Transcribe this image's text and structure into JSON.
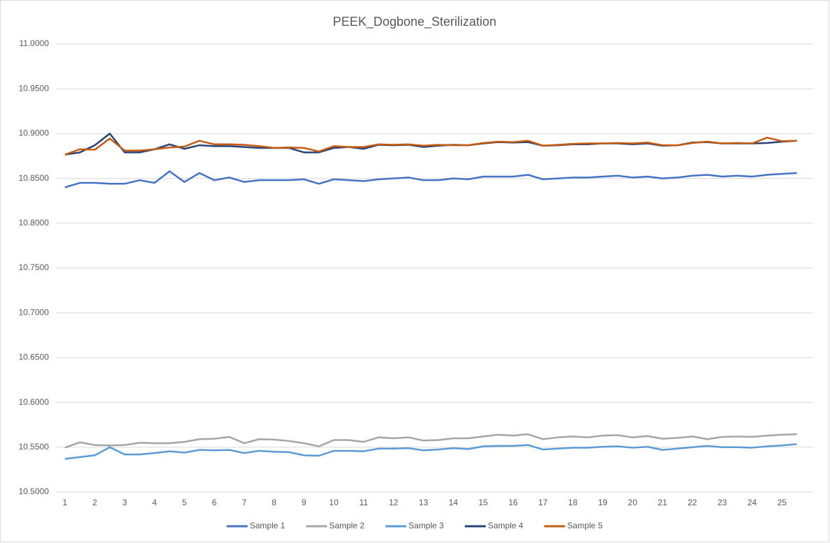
{
  "chart_data": {
    "type": "line",
    "title": "PEEK_Dogbone_Sterilization",
    "categories": [
      "1",
      null,
      "2",
      null,
      "3",
      null,
      "4",
      null,
      "5",
      null,
      "6",
      null,
      "7",
      null,
      "8",
      null,
      "9",
      null,
      "10",
      null,
      "11",
      null,
      "12",
      null,
      "13",
      null,
      "14",
      null,
      "15",
      null,
      "16",
      null,
      "17",
      null,
      "18",
      null,
      "19",
      null,
      "20",
      null,
      "21",
      null,
      "22",
      null,
      "23",
      null,
      "24",
      null,
      "25",
      null
    ],
    "ylim": [
      10.5,
      11.0
    ],
    "yticks": [
      {
        "value": 10.5,
        "label": "10.5000"
      },
      {
        "value": 10.55,
        "label": "10.5500"
      },
      {
        "value": 10.6,
        "label": "10.6000"
      },
      {
        "value": 10.65,
        "label": "10.6500"
      },
      {
        "value": 10.7,
        "label": "10.7000"
      },
      {
        "value": 10.75,
        "label": "10.7500"
      },
      {
        "value": 10.8,
        "label": "10.8000"
      },
      {
        "value": 10.85,
        "label": "10.8500"
      },
      {
        "value": 10.9,
        "label": "10.9000"
      },
      {
        "value": 10.95,
        "label": "10.9500"
      },
      {
        "value": 11.0,
        "label": "11.0000"
      }
    ],
    "grid": true,
    "legend": "bottom",
    "series": [
      {
        "name": "Sample 1",
        "color": "#4472c4",
        "values": [
          10.84,
          10.845,
          10.845,
          10.844,
          10.844,
          10.848,
          10.845,
          10.858,
          10.846,
          10.856,
          10.848,
          10.851,
          10.846,
          10.848,
          10.848,
          10.848,
          10.849,
          10.844,
          10.849,
          10.848,
          10.847,
          10.849,
          10.85,
          10.851,
          10.848,
          10.848,
          10.85,
          10.849,
          10.852,
          10.852,
          10.852,
          10.854,
          10.849,
          10.85,
          10.851,
          10.851,
          10.852,
          10.853,
          10.851,
          10.852,
          10.85,
          10.851,
          10.853,
          10.854,
          10.852,
          10.853,
          10.852,
          10.854,
          10.855,
          10.856
        ]
      },
      {
        "name": "Sample 2",
        "color": "#a5a5a5",
        "values": [
          10.5495,
          10.5555,
          10.5525,
          10.552,
          10.5525,
          10.555,
          10.5545,
          10.5545,
          10.556,
          10.559,
          10.5595,
          10.5615,
          10.5545,
          10.559,
          10.5585,
          10.557,
          10.5545,
          10.551,
          10.558,
          10.558,
          10.556,
          10.561,
          10.56,
          10.561,
          10.5575,
          10.558,
          10.56,
          10.56,
          10.562,
          10.564,
          10.563,
          10.5645,
          10.559,
          10.561,
          10.562,
          10.561,
          10.563,
          10.5635,
          10.561,
          10.5625,
          10.5595,
          10.5605,
          10.562,
          10.559,
          10.5615,
          10.562,
          10.5615,
          10.563,
          10.564,
          10.5645
        ]
      },
      {
        "name": "Sample 3",
        "color": "#5b9bd5",
        "values": [
          10.537,
          10.539,
          10.541,
          10.55,
          10.542,
          10.542,
          10.5435,
          10.5455,
          10.544,
          10.547,
          10.5465,
          10.547,
          10.5435,
          10.546,
          10.545,
          10.5445,
          10.541,
          10.5405,
          10.546,
          10.546,
          10.5455,
          10.5485,
          10.5485,
          10.549,
          10.5465,
          10.5475,
          10.549,
          10.548,
          10.551,
          10.5515,
          10.5515,
          10.5525,
          10.5475,
          10.5485,
          10.5495,
          10.5495,
          10.5505,
          10.551,
          10.5495,
          10.5505,
          10.547,
          10.5485,
          10.55,
          10.5515,
          10.55,
          10.55,
          10.5495,
          10.551,
          10.552,
          10.5535
        ]
      },
      {
        "name": "Sample 4",
        "color": "#264478",
        "values": [
          10.8765,
          10.879,
          10.887,
          10.9,
          10.879,
          10.879,
          10.8825,
          10.888,
          10.883,
          10.887,
          10.886,
          10.886,
          10.885,
          10.884,
          10.884,
          10.884,
          10.879,
          10.879,
          10.884,
          10.885,
          10.883,
          10.8875,
          10.887,
          10.8875,
          10.885,
          10.8865,
          10.8875,
          10.887,
          10.889,
          10.8905,
          10.89,
          10.8905,
          10.8865,
          10.887,
          10.888,
          10.888,
          10.889,
          10.889,
          10.888,
          10.889,
          10.8865,
          10.887,
          10.89,
          10.8905,
          10.889,
          10.889,
          10.889,
          10.8895,
          10.891,
          10.892
        ]
      },
      {
        "name": "Sample 5",
        "color": "#c55a11",
        "values": [
          10.8765,
          10.8825,
          10.882,
          10.8945,
          10.881,
          10.881,
          10.8825,
          10.8845,
          10.8855,
          10.892,
          10.888,
          10.888,
          10.8875,
          10.886,
          10.884,
          10.8845,
          10.884,
          10.88,
          10.886,
          10.885,
          10.885,
          10.888,
          10.8875,
          10.888,
          10.8865,
          10.8875,
          10.887,
          10.887,
          10.8895,
          10.891,
          10.8905,
          10.892,
          10.8865,
          10.8875,
          10.8885,
          10.889,
          10.889,
          10.8895,
          10.889,
          10.89,
          10.887,
          10.887,
          10.8895,
          10.891,
          10.889,
          10.8895,
          10.889,
          10.8955,
          10.8915,
          10.892
        ]
      }
    ]
  }
}
